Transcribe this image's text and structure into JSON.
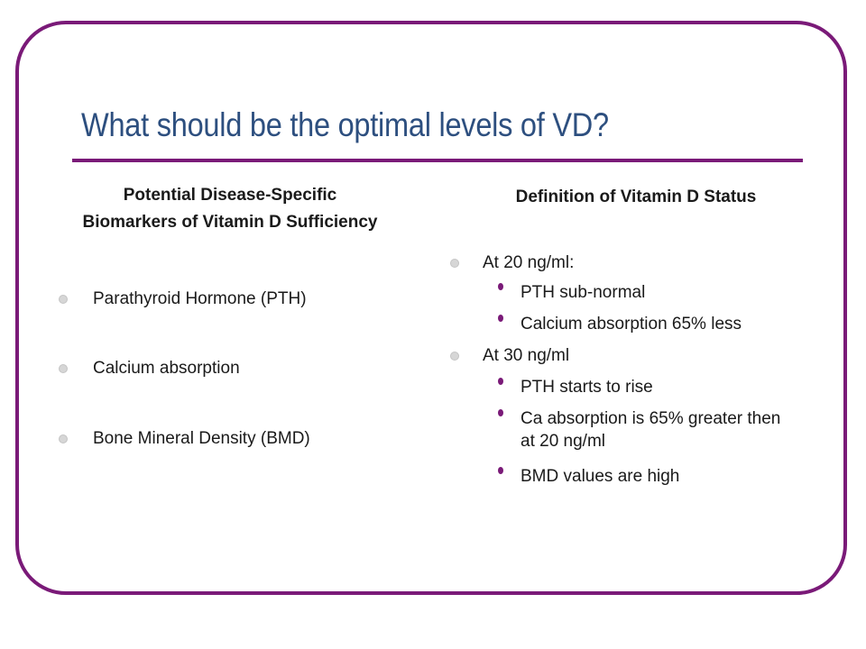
{
  "slide": {
    "title": "What should be the optimal levels of VD?",
    "accent_color": "#7a1a78",
    "title_color": "#2d4f7f"
  },
  "left_column": {
    "heading_line1": "Potential Disease-Specific",
    "heading_line2": "Biomarkers of Vitamin D Sufficiency",
    "items": [
      "Parathyroid Hormone (PTH)",
      "Calcium absorption",
      "Bone Mineral Density (BMD)"
    ]
  },
  "right_column": {
    "heading": "Definition of Vitamin D Status",
    "groups": [
      {
        "label": "At 20 ng/ml:",
        "subitems": [
          "PTH sub-normal",
          "Calcium absorption 65% less"
        ]
      },
      {
        "label": "At 30 ng/ml",
        "subitems": [
          "PTH starts to rise",
          "Ca absorption is 65% greater then",
          "at 20 ng/ml",
          "BMD values are high"
        ]
      }
    ]
  }
}
